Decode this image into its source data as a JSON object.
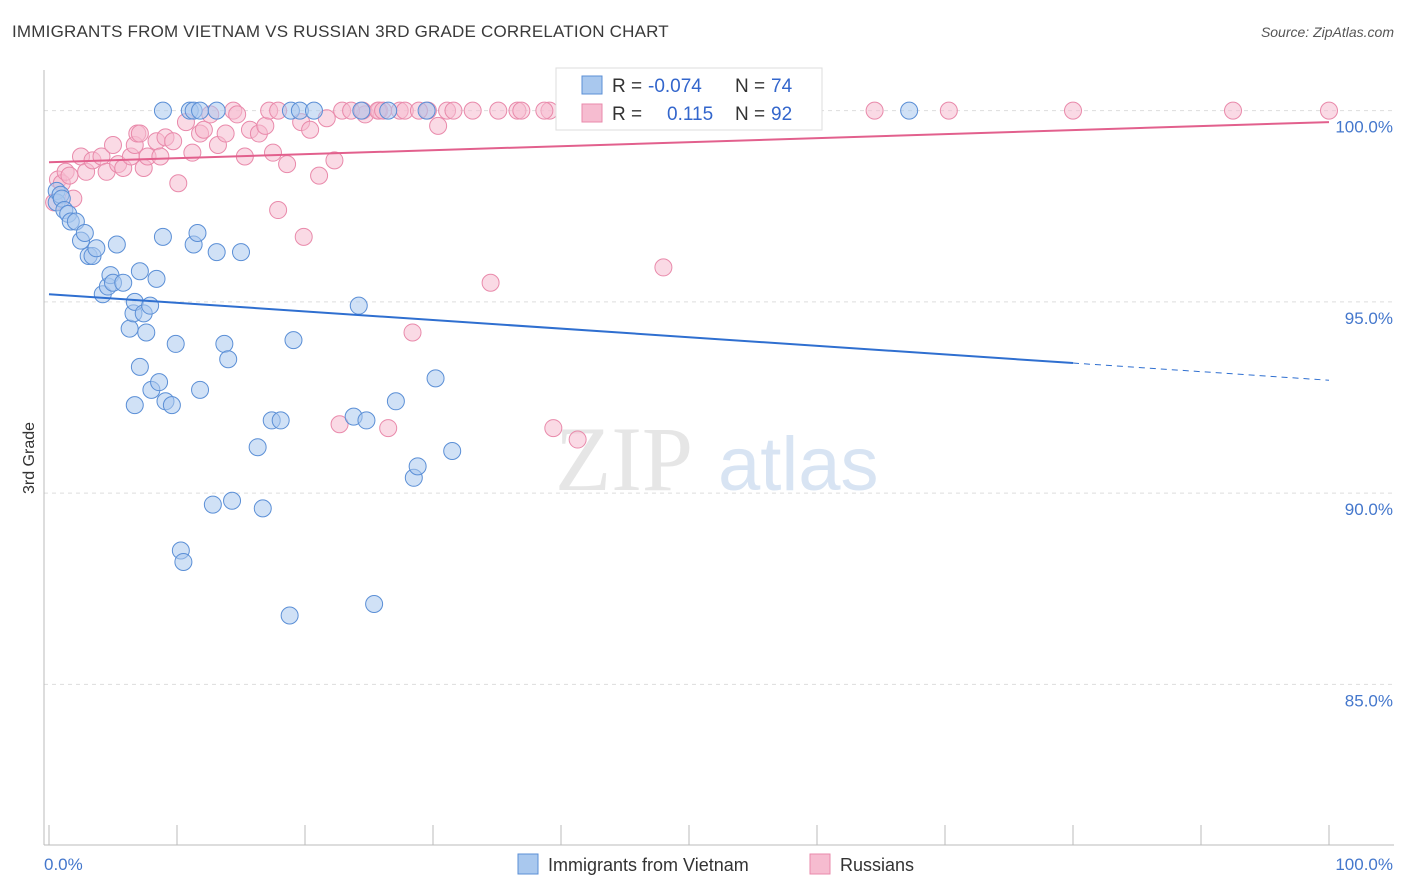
{
  "title": "IMMIGRANTS FROM VIETNAM VS RUSSIAN 3RD GRADE CORRELATION CHART",
  "source": "Source: ZipAtlas.com",
  "watermark": {
    "zip": "ZIP",
    "atlas": "atlas"
  },
  "colors": {
    "blue_fill": "#a9c8ee",
    "blue_stroke": "#5b8fd6",
    "blue_line": "#2f6fd0",
    "pink_fill": "#f6bcd0",
    "pink_stroke": "#e98aab",
    "pink_line": "#e2608d",
    "grid": "#dddddd",
    "tick_text": "#4477cc"
  },
  "legend_top": {
    "rows": [
      {
        "r_label": "R =",
        "r_value": "-0.074",
        "n_label": "N =",
        "n_value": "74",
        "series": "vietnam"
      },
      {
        "r_label": "R =",
        "r_value": "0.115",
        "n_label": "N =",
        "n_value": "92",
        "series": "russians"
      }
    ]
  },
  "legend_bottom": [
    {
      "label": "Immigrants from Vietnam",
      "series": "vietnam"
    },
    {
      "label": "Russians",
      "series": "russians"
    }
  ],
  "chart_data": {
    "type": "scatter",
    "title": "IMMIGRANTS FROM VIETNAM VS RUSSIAN 3RD GRADE CORRELATION CHART",
    "xlabel": "",
    "ylabel": "3rd Grade",
    "xlim": [
      0,
      100
    ],
    "ylim": [
      80.8,
      100.8
    ],
    "x_tick_labels": [
      {
        "value": 0,
        "label": "0.0%"
      },
      {
        "value": 100,
        "label": "100.0%"
      }
    ],
    "y_tick_labels": [
      {
        "value": 100,
        "label": "100.0%"
      },
      {
        "value": 95,
        "label": "95.0%"
      },
      {
        "value": 90,
        "label": "90.0%"
      },
      {
        "value": 85,
        "label": "85.0%"
      }
    ],
    "x_minor_ticks": [
      0,
      10,
      20,
      30,
      40,
      50,
      60,
      70,
      80,
      90,
      100
    ],
    "series": [
      {
        "name": "Immigrants from Vietnam",
        "key": "vietnam",
        "R": -0.074,
        "N": 74,
        "trend": {
          "x0": 0,
          "y0": 95.2,
          "x1": 80,
          "y1": 93.4,
          "dash_to_x": 100,
          "dash_to_y": 92.95
        },
        "points": [
          [
            0.6,
            97.9
          ],
          [
            0.6,
            97.6
          ],
          [
            0.9,
            97.8
          ],
          [
            1.0,
            97.7
          ],
          [
            1.2,
            97.4
          ],
          [
            1.5,
            97.3
          ],
          [
            1.7,
            97.1
          ],
          [
            2.1,
            97.1
          ],
          [
            2.5,
            96.6
          ],
          [
            2.8,
            96.8
          ],
          [
            3.1,
            96.2
          ],
          [
            3.4,
            96.2
          ],
          [
            3.7,
            96.4
          ],
          [
            4.2,
            95.2
          ],
          [
            4.6,
            95.4
          ],
          [
            4.8,
            95.7
          ],
          [
            5.0,
            95.5
          ],
          [
            5.3,
            96.5
          ],
          [
            5.8,
            95.5
          ],
          [
            6.3,
            94.3
          ],
          [
            6.6,
            94.7
          ],
          [
            6.7,
            95.0
          ],
          [
            7.1,
            95.8
          ],
          [
            7.4,
            94.7
          ],
          [
            7.6,
            94.2
          ],
          [
            7.9,
            94.9
          ],
          [
            8.4,
            95.6
          ],
          [
            8.9,
            96.7
          ],
          [
            6.7,
            92.3
          ],
          [
            7.1,
            93.3
          ],
          [
            8.0,
            92.7
          ],
          [
            8.6,
            92.9
          ],
          [
            9.1,
            92.4
          ],
          [
            9.6,
            92.3
          ],
          [
            9.9,
            93.9
          ],
          [
            10.3,
            88.5
          ],
          [
            10.5,
            88.2
          ],
          [
            11.3,
            96.5
          ],
          [
            11.6,
            96.8
          ],
          [
            11.8,
            92.7
          ],
          [
            12.8,
            89.7
          ],
          [
            13.1,
            96.3
          ],
          [
            13.7,
            93.9
          ],
          [
            14.0,
            93.5
          ],
          [
            14.3,
            89.8
          ],
          [
            15.0,
            96.3
          ],
          [
            16.3,
            91.2
          ],
          [
            16.7,
            89.6
          ],
          [
            17.4,
            91.9
          ],
          [
            18.1,
            91.9
          ],
          [
            18.8,
            86.8
          ],
          [
            19.1,
            94.0
          ],
          [
            23.8,
            92.0
          ],
          [
            24.2,
            94.9
          ],
          [
            24.8,
            91.9
          ],
          [
            25.4,
            87.1
          ],
          [
            27.1,
            92.4
          ],
          [
            28.5,
            90.4
          ],
          [
            28.8,
            90.7
          ],
          [
            30.2,
            93.0
          ],
          [
            31.5,
            91.1
          ],
          [
            8.9,
            100.0
          ],
          [
            11.0,
            100.0
          ],
          [
            11.3,
            100.0
          ],
          [
            11.8,
            100.0
          ],
          [
            13.1,
            100.0
          ],
          [
            18.9,
            100.0
          ],
          [
            19.6,
            100.0
          ],
          [
            20.7,
            100.0
          ],
          [
            24.4,
            100.0
          ],
          [
            26.5,
            100.0
          ],
          [
            29.5,
            100.0
          ],
          [
            42.1,
            100.0
          ],
          [
            67.2,
            100.0
          ]
        ]
      },
      {
        "name": "Russians",
        "key": "russians",
        "R": 0.115,
        "N": 92,
        "trend": {
          "x0": 0,
          "y0": 98.65,
          "x1": 100,
          "y1": 99.7
        },
        "points": [
          [
            0.4,
            97.6
          ],
          [
            0.7,
            98.2
          ],
          [
            1.0,
            98.1
          ],
          [
            1.3,
            98.4
          ],
          [
            1.6,
            98.3
          ],
          [
            1.9,
            97.7
          ],
          [
            2.5,
            98.8
          ],
          [
            2.9,
            98.4
          ],
          [
            3.4,
            98.7
          ],
          [
            4.1,
            98.8
          ],
          [
            4.5,
            98.4
          ],
          [
            5.0,
            99.1
          ],
          [
            5.4,
            98.6
          ],
          [
            5.8,
            98.5
          ],
          [
            6.4,
            98.8
          ],
          [
            6.7,
            99.1
          ],
          [
            6.9,
            99.4
          ],
          [
            7.1,
            99.4
          ],
          [
            7.4,
            98.5
          ],
          [
            7.7,
            98.8
          ],
          [
            8.4,
            99.2
          ],
          [
            8.7,
            98.8
          ],
          [
            9.1,
            99.3
          ],
          [
            9.7,
            99.2
          ],
          [
            10.1,
            98.1
          ],
          [
            10.7,
            99.7
          ],
          [
            11.2,
            98.9
          ],
          [
            11.8,
            99.4
          ],
          [
            12.1,
            99.5
          ],
          [
            12.6,
            99.9
          ],
          [
            13.2,
            99.1
          ],
          [
            13.8,
            99.4
          ],
          [
            14.4,
            100.0
          ],
          [
            14.7,
            99.9
          ],
          [
            15.3,
            98.8
          ],
          [
            15.7,
            99.5
          ],
          [
            16.4,
            99.4
          ],
          [
            16.9,
            99.6
          ],
          [
            17.5,
            98.9
          ],
          [
            17.9,
            97.4
          ],
          [
            18.6,
            98.6
          ],
          [
            19.7,
            99.7
          ],
          [
            19.9,
            96.7
          ],
          [
            20.4,
            99.5
          ],
          [
            21.1,
            98.3
          ],
          [
            21.7,
            99.8
          ],
          [
            22.3,
            98.7
          ],
          [
            22.7,
            91.8
          ],
          [
            24.7,
            99.9
          ],
          [
            25.8,
            100.0
          ],
          [
            26.5,
            91.7
          ],
          [
            27.4,
            100.0
          ],
          [
            28.4,
            94.2
          ],
          [
            29.6,
            100.0
          ],
          [
            30.4,
            99.6
          ],
          [
            31.1,
            100.0
          ],
          [
            34.5,
            95.5
          ],
          [
            36.6,
            100.0
          ],
          [
            39.1,
            100.0
          ],
          [
            39.4,
            91.7
          ],
          [
            41.3,
            91.4
          ],
          [
            42.7,
            100.0
          ],
          [
            43.4,
            100.0
          ],
          [
            46.4,
            100.0
          ],
          [
            48.0,
            95.9
          ],
          [
            50.4,
            100.0
          ],
          [
            56.3,
            100.0
          ],
          [
            59.5,
            100.0
          ],
          [
            64.5,
            100.0
          ],
          [
            70.3,
            100.0
          ],
          [
            80.0,
            100.0
          ],
          [
            92.5,
            100.0
          ],
          [
            100.0,
            100.0
          ],
          [
            17.2,
            100.0
          ],
          [
            17.9,
            100.0
          ],
          [
            22.9,
            100.0
          ],
          [
            23.6,
            100.0
          ],
          [
            24.5,
            100.0
          ],
          [
            25.7,
            100.0
          ],
          [
            26.1,
            100.0
          ],
          [
            27.8,
            100.0
          ],
          [
            28.9,
            100.0
          ],
          [
            31.6,
            100.0
          ],
          [
            33.1,
            100.0
          ],
          [
            35.1,
            100.0
          ],
          [
            36.9,
            100.0
          ],
          [
            38.7,
            100.0
          ],
          [
            41.5,
            100.0
          ],
          [
            45.6,
            100.0
          ],
          [
            52.3,
            100.0
          ],
          [
            54.9,
            100.0
          ],
          [
            59.1,
            100.0
          ]
        ]
      }
    ]
  }
}
